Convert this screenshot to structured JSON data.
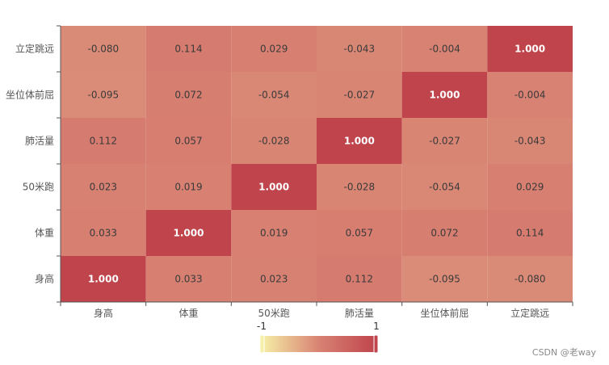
{
  "chart_data": {
    "type": "heatmap",
    "x_categories": [
      "身高",
      "体重",
      "50米跑",
      "肺活量",
      "坐位体前屈",
      "立定跳远"
    ],
    "y_categories": [
      "身高",
      "体重",
      "50米跑",
      "肺活量",
      "坐位体前屈",
      "立定跳远"
    ],
    "values": [
      [
        1.0,
        0.033,
        0.023,
        0.112,
        -0.095,
        -0.08
      ],
      [
        0.033,
        1.0,
        0.019,
        0.057,
        0.072,
        0.114
      ],
      [
        0.023,
        0.019,
        1.0,
        -0.028,
        -0.054,
        0.029
      ],
      [
        0.112,
        0.057,
        -0.028,
        1.0,
        -0.027,
        -0.043
      ],
      [
        -0.095,
        0.072,
        -0.054,
        -0.027,
        1.0,
        -0.004
      ],
      [
        -0.08,
        0.114,
        0.029,
        -0.043,
        -0.004,
        1.0
      ]
    ],
    "value_format": "3 decimals",
    "visual_map": {
      "min": -1,
      "max": 1,
      "min_label": "-1",
      "max_label": "1",
      "colors": [
        "#f6efa6",
        "#d88273",
        "#bf444c"
      ]
    }
  },
  "watermark": "CSDN @老way"
}
